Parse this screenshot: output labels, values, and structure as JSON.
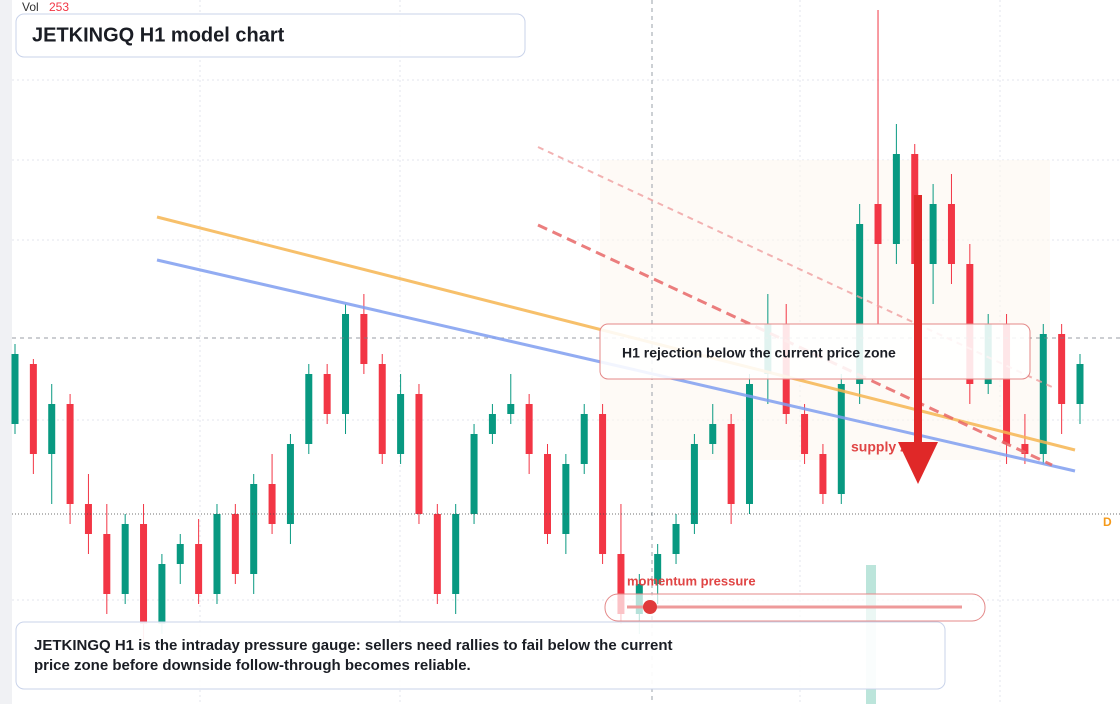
{
  "chart_data": {
    "type": "candlestick",
    "title": "JETKINGQ H1 model chart",
    "vol_label": "Vol",
    "vol_value": 253,
    "annotation": "H1 rejection below the current price zone",
    "zone_label": "supply zone",
    "gauge_label": "momentum pressure",
    "marker_label": "D",
    "description": "JETKINGQ H1 is the intraday pressure gauge: sellers need rallies to fail below the current price zone before downside follow-through becomes reliable.",
    "up_color": "#089981",
    "down_color": "#f23645",
    "ylim": [
      0,
      704
    ],
    "open": [
      280,
      340,
      250,
      300,
      200,
      170,
      110,
      180,
      80,
      140,
      160,
      110,
      190,
      130,
      220,
      180,
      260,
      330,
      290,
      390,
      340,
      250,
      310,
      190,
      110,
      190,
      270,
      290,
      300,
      250,
      170,
      240,
      290,
      150,
      90,
      120,
      150,
      180,
      260,
      280,
      200,
      330,
      380,
      290,
      250,
      210,
      320,
      500,
      460,
      550,
      440,
      500,
      440,
      320,
      380,
      260,
      250,
      370,
      300
    ],
    "high": [
      360,
      345,
      320,
      310,
      230,
      200,
      190,
      200,
      150,
      170,
      185,
      200,
      200,
      230,
      250,
      270,
      340,
      340,
      400,
      410,
      350,
      330,
      320,
      200,
      200,
      280,
      300,
      330,
      310,
      260,
      250,
      300,
      300,
      200,
      130,
      160,
      190,
      270,
      300,
      290,
      330,
      410,
      400,
      300,
      260,
      330,
      500,
      694,
      580,
      560,
      520,
      530,
      460,
      390,
      390,
      290,
      380,
      380,
      350
    ],
    "low": [
      270,
      230,
      200,
      180,
      150,
      90,
      100,
      60,
      70,
      120,
      100,
      100,
      120,
      110,
      170,
      160,
      250,
      280,
      270,
      330,
      240,
      240,
      180,
      100,
      90,
      180,
      260,
      280,
      230,
      160,
      150,
      230,
      140,
      80,
      70,
      100,
      140,
      170,
      250,
      180,
      190,
      300,
      280,
      240,
      200,
      200,
      300,
      380,
      440,
      430,
      400,
      420,
      300,
      310,
      240,
      240,
      240,
      270,
      280
    ],
    "close": [
      350,
      250,
      300,
      200,
      170,
      110,
      180,
      80,
      140,
      160,
      110,
      190,
      130,
      220,
      180,
      260,
      330,
      290,
      390,
      340,
      250,
      310,
      190,
      110,
      190,
      270,
      290,
      300,
      250,
      170,
      240,
      290,
      150,
      90,
      120,
      150,
      180,
      260,
      280,
      200,
      320,
      380,
      290,
      250,
      210,
      320,
      480,
      460,
      550,
      440,
      500,
      440,
      320,
      380,
      260,
      250,
      370,
      300,
      340
    ]
  }
}
